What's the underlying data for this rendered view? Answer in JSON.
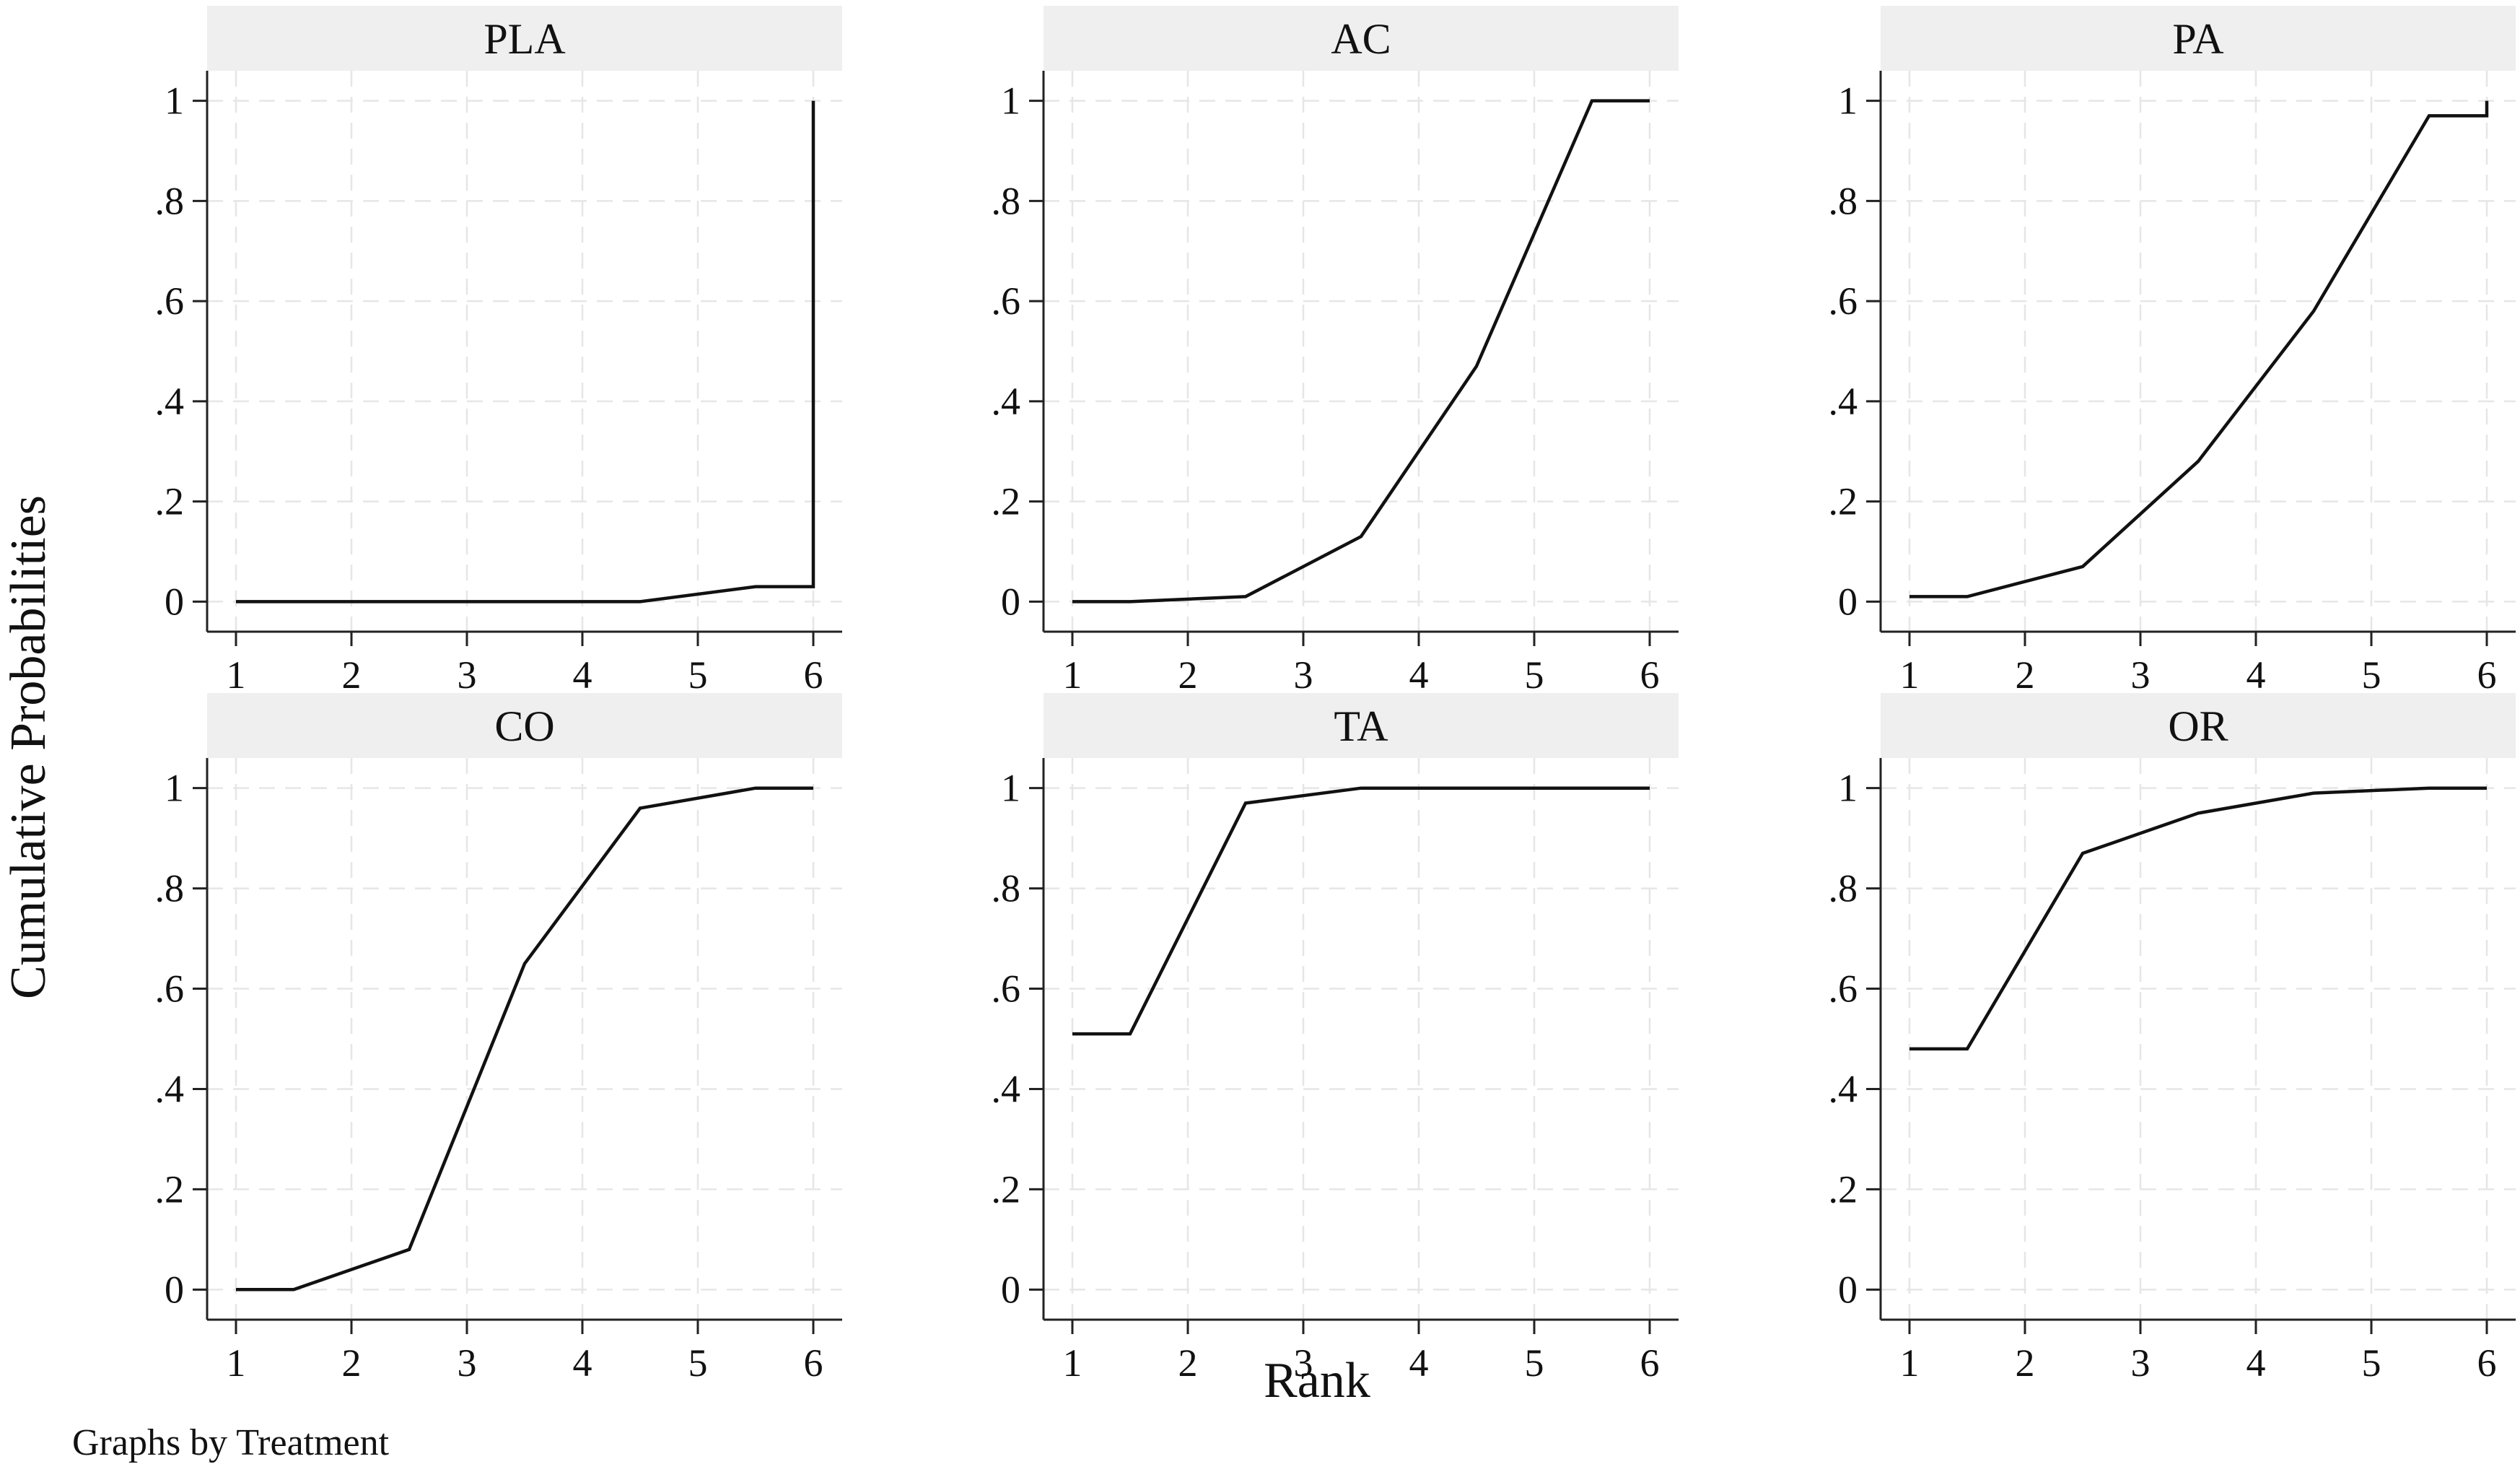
{
  "figure": {
    "ylabel": "Cumulative Probabilities",
    "xlabel": "Rank",
    "note": "Graphs by Treatment"
  },
  "chart_data": [
    {
      "type": "line",
      "title": "PLA",
      "x": [
        1,
        1.5,
        2.5,
        3.5,
        4.5,
        5.5,
        6,
        6
      ],
      "y": [
        0,
        0,
        0,
        0,
        0,
        0.03,
        0.03,
        1
      ],
      "xticks": [
        1,
        2,
        3,
        4,
        5,
        6
      ],
      "yticks": [
        0,
        0.2,
        0.4,
        0.6,
        0.8,
        1
      ],
      "ytick_labels": [
        "0",
        ".2",
        ".4",
        ".6",
        ".8",
        "1"
      ],
      "xlim": [
        0.75,
        6.25
      ],
      "ylim": [
        -0.06,
        1.06
      ],
      "grid": true
    },
    {
      "type": "line",
      "title": "AC",
      "x": [
        1,
        1.5,
        2.5,
        3.5,
        4.5,
        5.5,
        6
      ],
      "y": [
        0,
        0,
        0.01,
        0.13,
        0.47,
        1,
        1
      ],
      "xticks": [
        1,
        2,
        3,
        4,
        5,
        6
      ],
      "yticks": [
        0,
        0.2,
        0.4,
        0.6,
        0.8,
        1
      ],
      "ytick_labels": [
        "0",
        ".2",
        ".4",
        ".6",
        ".8",
        "1"
      ],
      "xlim": [
        0.75,
        6.25
      ],
      "ylim": [
        -0.06,
        1.06
      ],
      "grid": true
    },
    {
      "type": "line",
      "title": "PA",
      "x": [
        1,
        1.5,
        2.5,
        3.5,
        4.5,
        5.5,
        6,
        6
      ],
      "y": [
        0.01,
        0.01,
        0.07,
        0.28,
        0.58,
        0.97,
        0.97,
        1
      ],
      "xticks": [
        1,
        2,
        3,
        4,
        5,
        6
      ],
      "yticks": [
        0,
        0.2,
        0.4,
        0.6,
        0.8,
        1
      ],
      "ytick_labels": [
        "0",
        ".2",
        ".4",
        ".6",
        ".8",
        "1"
      ],
      "xlim": [
        0.75,
        6.25
      ],
      "ylim": [
        -0.06,
        1.06
      ],
      "grid": true
    },
    {
      "type": "line",
      "title": "CO",
      "x": [
        1,
        1.5,
        2.5,
        3.5,
        4.5,
        5.5,
        6
      ],
      "y": [
        0,
        0,
        0.08,
        0.65,
        0.96,
        1,
        1
      ],
      "xticks": [
        1,
        2,
        3,
        4,
        5,
        6
      ],
      "yticks": [
        0,
        0.2,
        0.4,
        0.6,
        0.8,
        1
      ],
      "ytick_labels": [
        "0",
        ".2",
        ".4",
        ".6",
        ".8",
        "1"
      ],
      "xlim": [
        0.75,
        6.25
      ],
      "ylim": [
        -0.06,
        1.06
      ],
      "grid": true
    },
    {
      "type": "line",
      "title": "TA",
      "x": [
        1,
        1.5,
        2.5,
        3.5,
        4.5,
        5.5,
        6
      ],
      "y": [
        0.51,
        0.51,
        0.97,
        1,
        1,
        1,
        1
      ],
      "xticks": [
        1,
        2,
        3,
        4,
        5,
        6
      ],
      "yticks": [
        0,
        0.2,
        0.4,
        0.6,
        0.8,
        1
      ],
      "ytick_labels": [
        "0",
        ".2",
        ".4",
        ".6",
        ".8",
        "1"
      ],
      "xlim": [
        0.75,
        6.25
      ],
      "ylim": [
        -0.06,
        1.06
      ],
      "grid": true
    },
    {
      "type": "line",
      "title": "OR",
      "x": [
        1,
        1.5,
        2.5,
        3.5,
        4.5,
        5.5,
        6
      ],
      "y": [
        0.48,
        0.48,
        0.87,
        0.95,
        0.99,
        1,
        1
      ],
      "xticks": [
        1,
        2,
        3,
        4,
        5,
        6
      ],
      "yticks": [
        0,
        0.2,
        0.4,
        0.6,
        0.8,
        1
      ],
      "ytick_labels": [
        "0",
        ".2",
        ".4",
        ".6",
        ".8",
        "1"
      ],
      "xlim": [
        0.75,
        6.25
      ],
      "ylim": [
        -0.06,
        1.06
      ],
      "grid": true
    }
  ]
}
